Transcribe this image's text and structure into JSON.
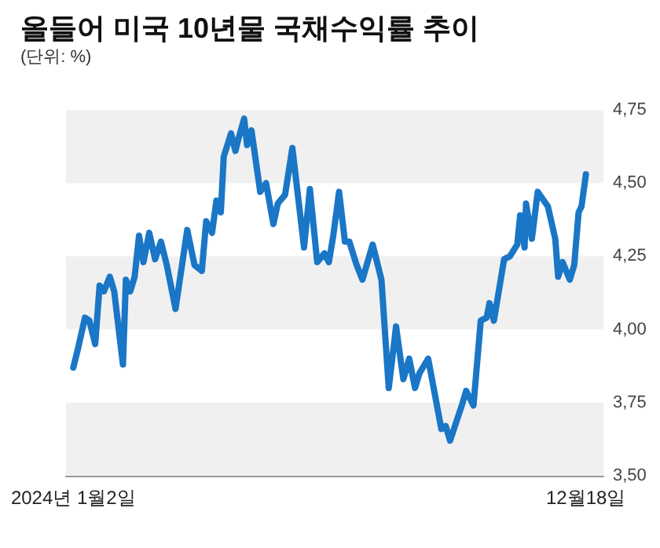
{
  "chart_data": {
    "type": "line",
    "title": "올들어 미국 10년물 국채수익률 추이",
    "subtitle": "(단위: %)",
    "x": [
      "2024-01-02",
      "2024-01-05",
      "2024-01-10",
      "2024-01-13",
      "2024-01-17",
      "2024-01-20",
      "2024-01-23",
      "2024-01-27",
      "2024-01-30",
      "2024-02-05",
      "2024-02-07",
      "2024-02-10",
      "2024-02-13",
      "2024-02-16",
      "2024-02-19",
      "2024-02-23",
      "2024-02-27",
      "2024-03-02",
      "2024-03-06",
      "2024-03-12",
      "2024-03-20",
      "2024-03-25",
      "2024-03-30",
      "2024-04-02",
      "2024-04-06",
      "2024-04-09",
      "2024-04-12",
      "2024-04-14",
      "2024-04-19",
      "2024-04-22",
      "2024-04-24",
      "2024-04-28",
      "2024-04-30",
      "2024-05-03",
      "2024-05-09",
      "2024-05-13",
      "2024-05-18",
      "2024-05-21",
      "2024-05-26",
      "2024-05-31",
      "2024-06-08",
      "2024-06-12",
      "2024-06-17",
      "2024-06-22",
      "2024-06-25",
      "2024-06-28",
      "2024-07-02",
      "2024-07-06",
      "2024-07-09",
      "2024-07-14",
      "2024-07-18",
      "2024-07-25",
      "2024-07-31",
      "2024-08-05",
      "2024-08-10",
      "2024-08-15",
      "2024-08-19",
      "2024-08-23",
      "2024-08-26",
      "2024-09-01",
      "2024-09-10",
      "2024-09-13",
      "2024-09-16",
      "2024-09-24",
      "2024-09-27",
      "2024-10-02",
      "2024-10-07",
      "2024-10-11",
      "2024-10-13",
      "2024-10-16",
      "2024-10-23",
      "2024-10-27",
      "2024-11-01",
      "2024-11-03",
      "2024-11-06",
      "2024-11-07",
      "2024-11-11",
      "2024-11-15",
      "2024-11-22",
      "2024-11-27",
      "2024-11-29",
      "2024-12-02",
      "2024-12-07",
      "2024-12-10",
      "2024-12-13",
      "2024-12-15",
      "2024-12-18"
    ],
    "series": [
      {
        "color": "#1a76c6",
        "values": [
          3.87,
          3.93,
          4.04,
          4.03,
          3.95,
          4.15,
          4.13,
          4.18,
          4.13,
          3.88,
          4.17,
          4.13,
          4.18,
          4.32,
          4.23,
          4.33,
          4.24,
          4.3,
          4.22,
          4.07,
          4.34,
          4.22,
          4.2,
          4.37,
          4.33,
          4.44,
          4.4,
          4.59,
          4.67,
          4.61,
          4.65,
          4.72,
          4.63,
          4.68,
          4.47,
          4.5,
          4.36,
          4.43,
          4.46,
          4.62,
          4.28,
          4.48,
          4.23,
          4.26,
          4.23,
          4.32,
          4.47,
          4.3,
          4.3,
          4.22,
          4.17,
          4.29,
          4.17,
          3.8,
          4.01,
          3.83,
          3.9,
          3.8,
          3.85,
          3.9,
          3.66,
          3.67,
          3.62,
          3.74,
          3.79,
          3.74,
          4.03,
          4.04,
          4.09,
          4.03,
          4.24,
          4.25,
          4.29,
          4.39,
          4.28,
          4.43,
          4.31,
          4.47,
          4.42,
          4.31,
          4.18,
          4.23,
          4.17,
          4.22,
          4.4,
          4.42,
          4.53
        ]
      }
    ],
    "xlim": [
      "2023-12-28",
      "2024-12-30"
    ],
    "xticks": [
      {
        "value": "2024-01-02",
        "label": "2024년 1월2일"
      },
      {
        "value": "2024-12-18",
        "label": "12월18일"
      }
    ],
    "ylim": [
      3.5,
      4.75
    ],
    "yticks": [
      {
        "value": 3.5,
        "label": "3,50"
      },
      {
        "value": 3.75,
        "label": "3,75"
      },
      {
        "value": 4.0,
        "label": "4,00"
      },
      {
        "value": 4.25,
        "label": "4,25"
      },
      {
        "value": 4.5,
        "label": "4,50"
      },
      {
        "value": 4.75,
        "label": "4,75"
      }
    ],
    "bands": [
      {
        "axis": "y",
        "from": 3.5,
        "to": 3.75,
        "color": "#f0f0f0"
      },
      {
        "axis": "y",
        "from": 4.0,
        "to": 4.25,
        "color": "#f0f0f0"
      },
      {
        "axis": "y",
        "from": 4.5,
        "to": 4.75,
        "color": "#f0f0f0"
      }
    ],
    "grid": false,
    "marker": "none",
    "line_style": "solid"
  }
}
